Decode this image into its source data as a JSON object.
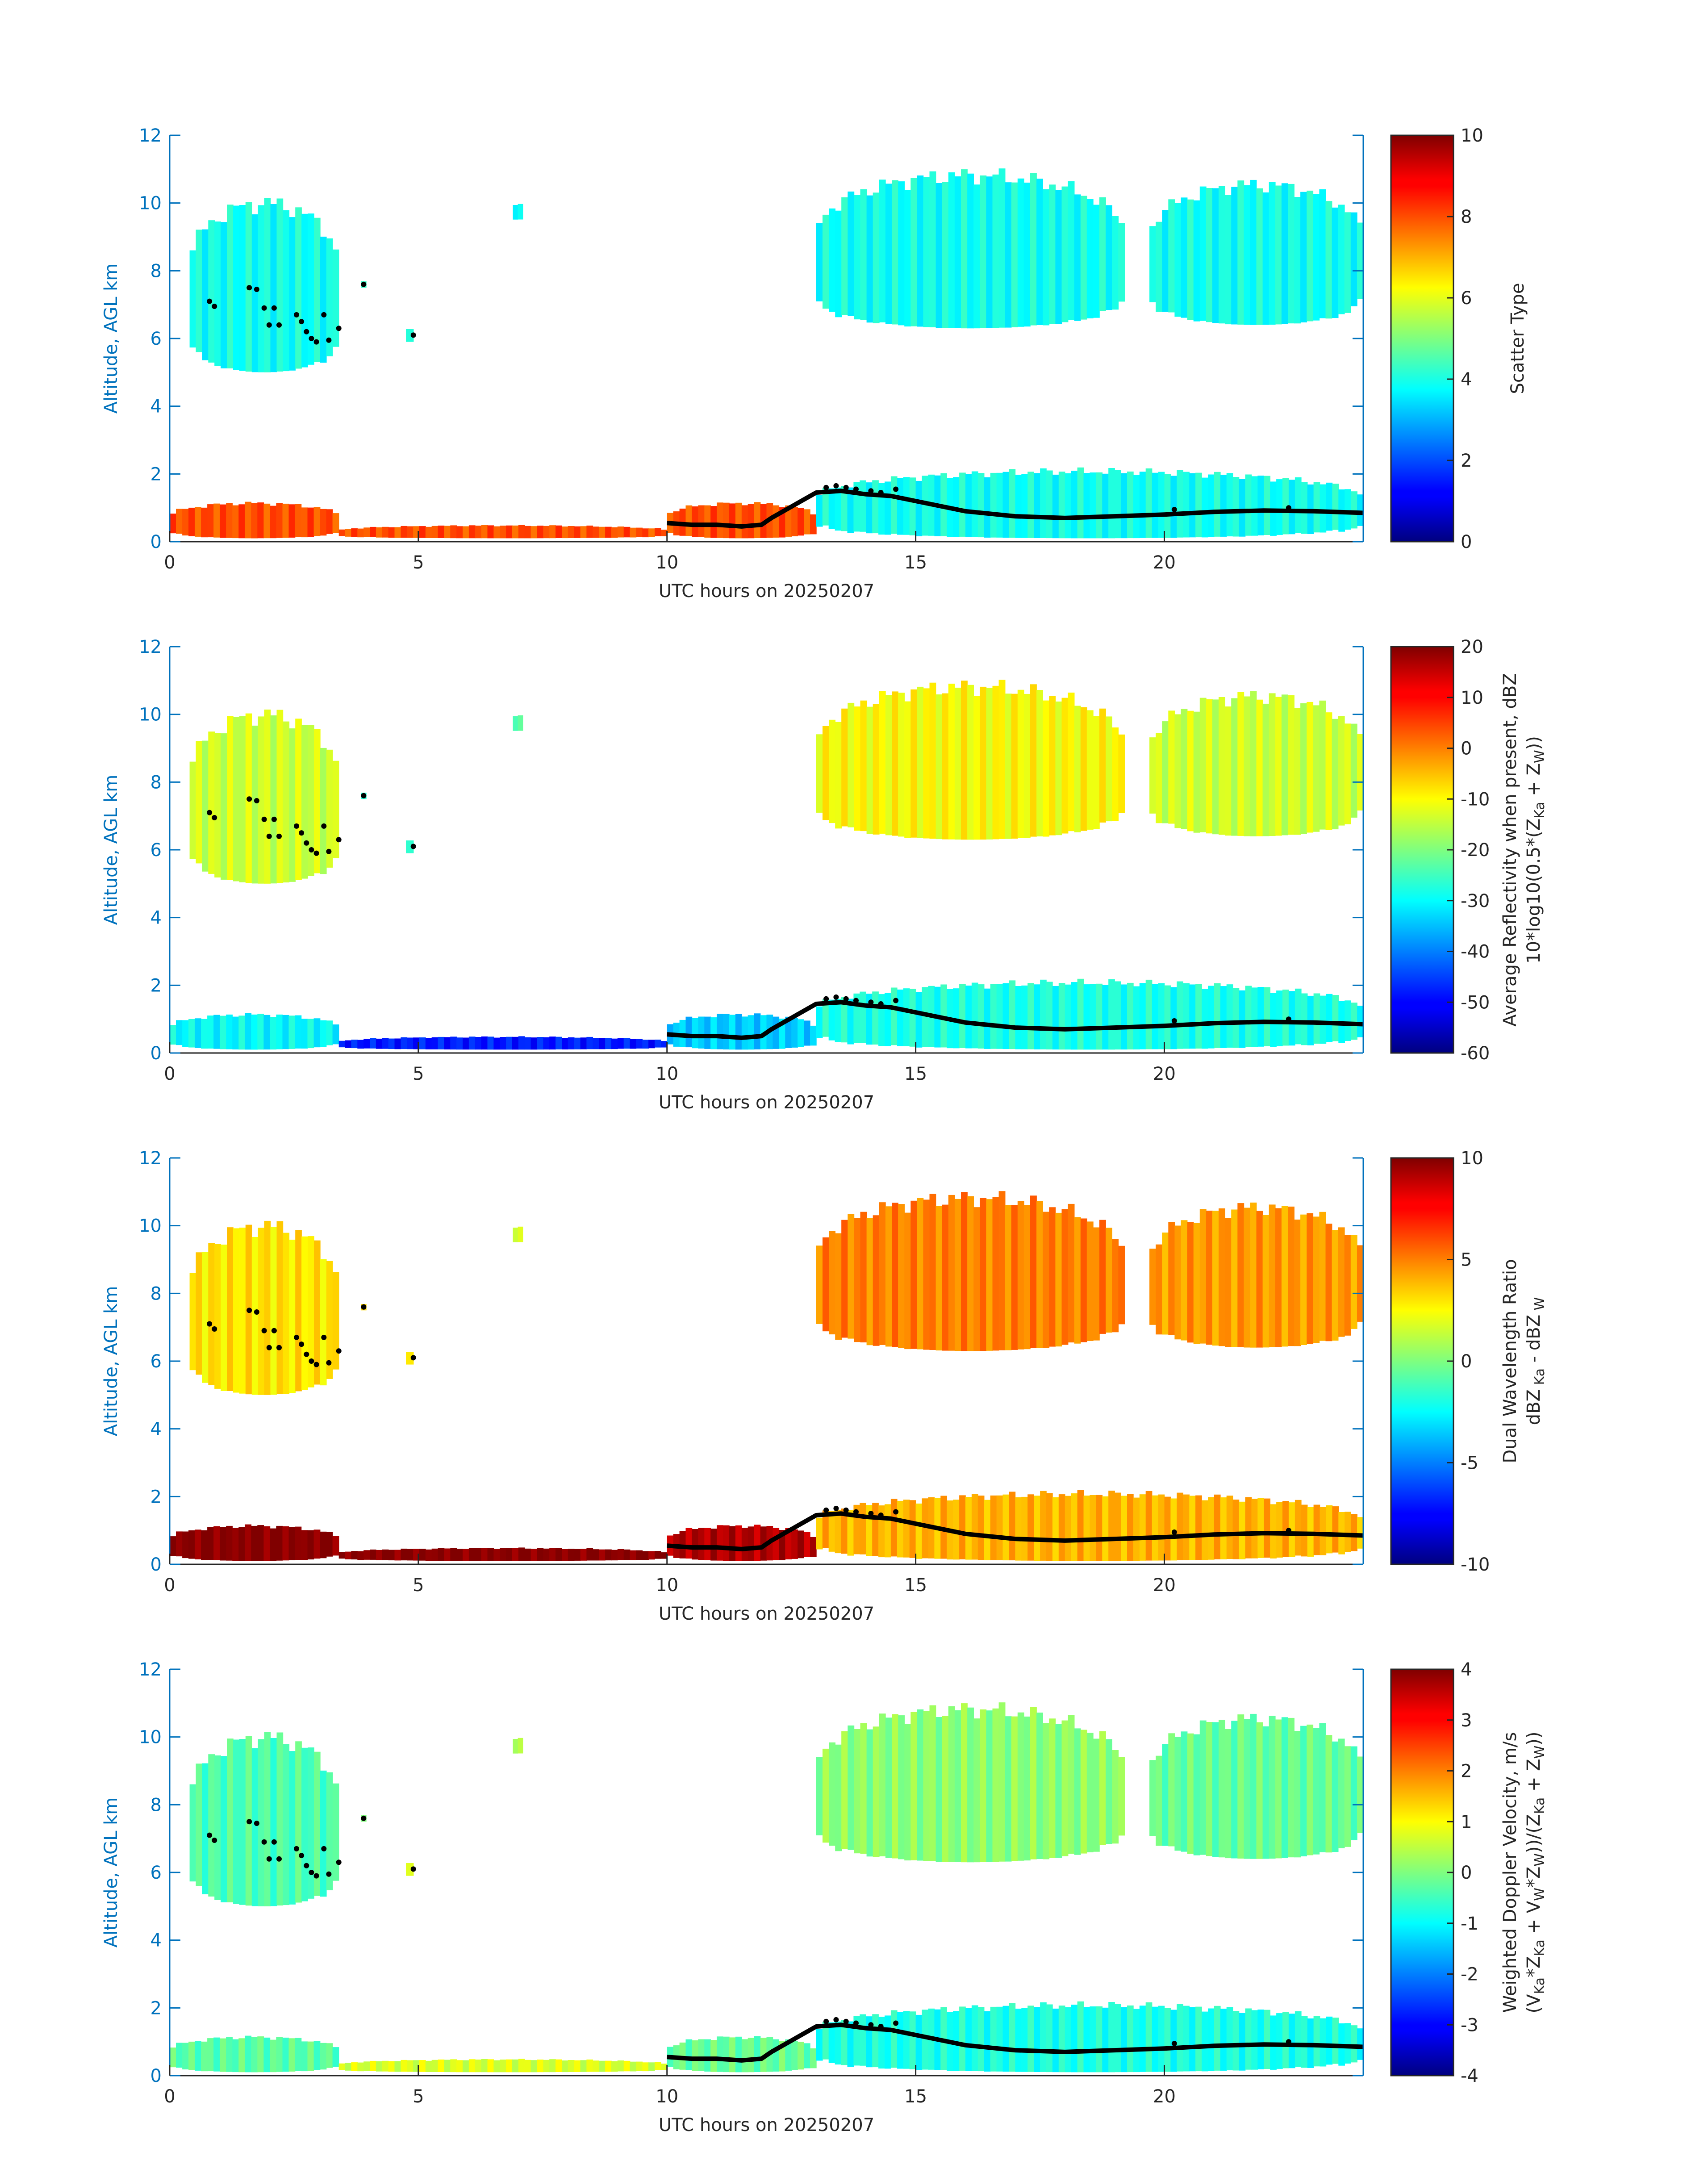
{
  "figure": {
    "x_axis": {
      "label": "UTC hours on 20250207",
      "ticks": [
        0,
        5,
        10,
        15,
        20
      ],
      "lim": [
        0,
        24
      ]
    },
    "y_axis": {
      "label": "Altitude, AGL km",
      "ticks": [
        0,
        2,
        4,
        6,
        8,
        10,
        12
      ],
      "lim": [
        0,
        12
      ]
    },
    "axis_color": "#0072bd",
    "colormap": "jet",
    "marker_color": "#000000"
  },
  "chart_data": [
    {
      "type": "heatmap",
      "panel": "scatter-type",
      "xlabel": "UTC hours on 20250207",
      "ylabel": "Altitude, AGL km",
      "xlim": [
        0,
        24
      ],
      "ylim": [
        0,
        12
      ],
      "colorbar": {
        "label_lines": [
          "Scatter Type"
        ],
        "clim": [
          0,
          10
        ],
        "ticks": [
          0,
          2,
          4,
          6,
          8,
          10
        ]
      },
      "regions": [
        {
          "label": "upper cloud 0.4-3.4 h",
          "x": [
            0.4,
            3.4
          ],
          "y_bottom": 5.0,
          "y_top": 10.3,
          "value": 3.9
        },
        {
          "label": "cloud near 3.9 h",
          "x": [
            3.85,
            3.95
          ],
          "y_bottom": 7.5,
          "y_top": 7.7,
          "value": 3.9
        },
        {
          "label": "cloud near 4.8 h",
          "x": [
            4.75,
            4.9
          ],
          "y_bottom": 5.9,
          "y_top": 6.3,
          "value": 3.9
        },
        {
          "label": "cloud near 7 h",
          "x": [
            6.9,
            7.1
          ],
          "y_bottom": 9.5,
          "y_top": 10.0,
          "value": 3.9
        },
        {
          "label": "upper cloud 13-19.2 h",
          "x": [
            13.0,
            19.2
          ],
          "y_bottom": 6.3,
          "y_top": 11.1,
          "value": 3.9
        },
        {
          "label": "upper cloud 19.7-24 h",
          "x": [
            19.7,
            24.0
          ],
          "y_bottom": 6.4,
          "y_top": 10.8,
          "value": 3.9
        },
        {
          "label": "low layer 0-3.4 h",
          "x": [
            0.0,
            3.4
          ],
          "y_bottom": 0.1,
          "y_top": 1.2,
          "value": 8.0
        },
        {
          "label": "low layer 3.4-10 h",
          "x": [
            3.4,
            10.0
          ],
          "y_bottom": 0.1,
          "y_top": 0.5,
          "value": 8.0
        },
        {
          "label": "low layer 10-13 h",
          "x": [
            10.0,
            13.0
          ],
          "y_bottom": 0.1,
          "y_top": 1.2,
          "value": 8.0
        },
        {
          "label": "low cloud 13-24 h",
          "x": [
            13.0,
            24.0
          ],
          "y_bottom": 0.1,
          "y_top": 2.2,
          "value": 3.9
        }
      ]
    },
    {
      "type": "heatmap",
      "panel": "reflectivity",
      "xlabel": "UTC hours on 20250207",
      "ylabel": "Altitude, AGL km",
      "xlim": [
        0,
        24
      ],
      "ylim": [
        0,
        12
      ],
      "colorbar": {
        "label_lines": [
          "Average Reflectivity when present, dBZ",
          "10*log10(0.5*(Z_Ka + Z_W))"
        ],
        "clim": [
          -60,
          20
        ],
        "ticks": [
          -60,
          -50,
          -40,
          -30,
          -20,
          -10,
          0,
          10,
          20
        ]
      },
      "regions": [
        {
          "label": "upper cloud 0.4-3.4 h",
          "x": [
            0.4,
            3.4
          ],
          "y_bottom": 5.0,
          "y_top": 10.3,
          "value": -14
        },
        {
          "label": "cloud near 3.9 h",
          "x": [
            3.85,
            3.95
          ],
          "y_bottom": 7.5,
          "y_top": 7.7,
          "value": -30
        },
        {
          "label": "cloud near 4.8 h",
          "x": [
            4.75,
            4.9
          ],
          "y_bottom": 5.9,
          "y_top": 6.3,
          "value": -28
        },
        {
          "label": "cloud near 7 h",
          "x": [
            6.9,
            7.1
          ],
          "y_bottom": 9.5,
          "y_top": 10.0,
          "value": -22
        },
        {
          "label": "upper cloud 13-19.2 h",
          "x": [
            13.0,
            19.2
          ],
          "y_bottom": 6.3,
          "y_top": 11.1,
          "value": -10
        },
        {
          "label": "upper cloud 19.7-24 h",
          "x": [
            19.7,
            24.0
          ],
          "y_bottom": 6.4,
          "y_top": 10.8,
          "value": -14
        },
        {
          "label": "low layer 0-3.4 h",
          "x": [
            0.0,
            3.4
          ],
          "y_bottom": 0.1,
          "y_top": 1.2,
          "value": -30
        },
        {
          "label": "low layer 3.4-10 h",
          "x": [
            3.4,
            10.0
          ],
          "y_bottom": 0.1,
          "y_top": 0.5,
          "value": -48
        },
        {
          "label": "low layer 10-13 h",
          "x": [
            10.0,
            13.0
          ],
          "y_bottom": 0.1,
          "y_top": 1.2,
          "value": -34
        },
        {
          "label": "low cloud 13-24 h",
          "x": [
            13.0,
            24.0
          ],
          "y_bottom": 0.1,
          "y_top": 2.2,
          "value": -28
        }
      ]
    },
    {
      "type": "heatmap",
      "panel": "dual-wavelength-ratio",
      "xlabel": "UTC hours on 20250207",
      "ylabel": "Altitude, AGL km",
      "xlim": [
        0,
        24
      ],
      "ylim": [
        0,
        12
      ],
      "colorbar": {
        "label_lines": [
          "Dual Wavelength Ratio",
          "dBZ_Ka - dBZ_W"
        ],
        "clim": [
          -10,
          10
        ],
        "ticks": [
          -10,
          -5,
          0,
          5,
          10
        ]
      },
      "regions": [
        {
          "label": "upper cloud 0.4-3.4 h",
          "x": [
            0.4,
            3.4
          ],
          "y_bottom": 5.0,
          "y_top": 10.3,
          "value": 3.0
        },
        {
          "label": "cloud near 3.9 h",
          "x": [
            3.85,
            3.95
          ],
          "y_bottom": 7.5,
          "y_top": 7.7,
          "value": 2.5
        },
        {
          "label": "cloud near 4.8 h",
          "x": [
            4.75,
            4.9
          ],
          "y_bottom": 5.9,
          "y_top": 6.3,
          "value": 2.5
        },
        {
          "label": "cloud near 7 h",
          "x": [
            6.9,
            7.1
          ],
          "y_bottom": 9.5,
          "y_top": 10.0,
          "value": 2.0
        },
        {
          "label": "upper cloud 13-19.2 h",
          "x": [
            13.0,
            19.2
          ],
          "y_bottom": 6.3,
          "y_top": 11.1,
          "value": 5.0
        },
        {
          "label": "upper cloud 19.7-24 h",
          "x": [
            19.7,
            24.0
          ],
          "y_bottom": 6.4,
          "y_top": 10.8,
          "value": 4.5
        },
        {
          "label": "low layer 0-3.4 h",
          "x": [
            0.0,
            3.4
          ],
          "y_bottom": 0.1,
          "y_top": 1.2,
          "value": 10.0
        },
        {
          "label": "low layer 3.4-10 h",
          "x": [
            3.4,
            10.0
          ],
          "y_bottom": 0.1,
          "y_top": 0.5,
          "value": 10.0
        },
        {
          "label": "low layer 10-13 h",
          "x": [
            10.0,
            13.0
          ],
          "y_bottom": 0.1,
          "y_top": 1.2,
          "value": 9.0
        },
        {
          "label": "low cloud 13-24 h",
          "x": [
            13.0,
            24.0
          ],
          "y_bottom": 0.1,
          "y_top": 2.2,
          "value": 4.0
        }
      ]
    },
    {
      "type": "heatmap",
      "panel": "doppler-velocity",
      "xlabel": "UTC hours on 20250207",
      "ylabel": "Altitude, AGL km",
      "xlim": [
        0,
        24
      ],
      "ylim": [
        0,
        12
      ],
      "colorbar": {
        "label_lines": [
          "Weighted Doppler Velocity, m/s",
          "(V_Ka*Z_Ka + V_W*Z_W))/(Z_Ka + Z_W))"
        ],
        "clim": [
          -4,
          4
        ],
        "ticks": [
          -4,
          -3,
          -2,
          -1,
          0,
          1,
          2,
          3,
          4
        ]
      },
      "regions": [
        {
          "label": "upper cloud 0.4-3.4 h",
          "x": [
            0.4,
            3.4
          ],
          "y_bottom": 5.0,
          "y_top": 10.3,
          "value": -0.4
        },
        {
          "label": "cloud near 3.9 h",
          "x": [
            3.85,
            3.95
          ],
          "y_bottom": 7.5,
          "y_top": 7.7,
          "value": -0.3
        },
        {
          "label": "cloud near 4.8 h",
          "x": [
            4.75,
            4.9
          ],
          "y_bottom": 5.9,
          "y_top": 6.3,
          "value": 0.6
        },
        {
          "label": "cloud near 7 h",
          "x": [
            6.9,
            7.1
          ],
          "y_bottom": 9.5,
          "y_top": 10.0,
          "value": 0.5
        },
        {
          "label": "upper cloud 13-19.2 h",
          "x": [
            13.0,
            19.2
          ],
          "y_bottom": 6.3,
          "y_top": 11.1,
          "value": 0.1
        },
        {
          "label": "upper cloud 19.7-24 h",
          "x": [
            19.7,
            24.0
          ],
          "y_bottom": 6.4,
          "y_top": 10.8,
          "value": -0.2
        },
        {
          "label": "low layer 0-3.4 h",
          "x": [
            0.0,
            3.4
          ],
          "y_bottom": 0.1,
          "y_top": 1.2,
          "value": -0.3
        },
        {
          "label": "low layer 3.4-10 h",
          "x": [
            3.4,
            10.0
          ],
          "y_bottom": 0.1,
          "y_top": 0.5,
          "value": 0.7
        },
        {
          "label": "low layer 10-13 h",
          "x": [
            10.0,
            13.0
          ],
          "y_bottom": 0.1,
          "y_top": 1.2,
          "value": -0.2
        },
        {
          "label": "low cloud 13-24 h",
          "x": [
            13.0,
            24.0
          ],
          "y_bottom": 0.1,
          "y_top": 2.2,
          "value": -0.8
        }
      ]
    }
  ],
  "overlay_points": {
    "boundary_line": [
      [
        10.0,
        0.55
      ],
      [
        10.5,
        0.5
      ],
      [
        11.0,
        0.5
      ],
      [
        11.5,
        0.45
      ],
      [
        11.9,
        0.5
      ],
      [
        12.1,
        0.7
      ],
      [
        13.0,
        1.45
      ],
      [
        13.5,
        1.5
      ],
      [
        14.0,
        1.4
      ],
      [
        14.5,
        1.35
      ],
      [
        15.0,
        1.2
      ],
      [
        16.0,
        0.9
      ],
      [
        17.0,
        0.75
      ],
      [
        18.0,
        0.7
      ],
      [
        19.0,
        0.75
      ],
      [
        20.0,
        0.8
      ],
      [
        21.0,
        0.88
      ],
      [
        22.0,
        0.92
      ],
      [
        23.0,
        0.9
      ],
      [
        24.0,
        0.85
      ]
    ],
    "scatter": [
      [
        0.8,
        7.1
      ],
      [
        0.9,
        6.95
      ],
      [
        1.6,
        7.5
      ],
      [
        1.75,
        7.45
      ],
      [
        1.9,
        6.9
      ],
      [
        2.0,
        6.4
      ],
      [
        2.1,
        6.9
      ],
      [
        2.2,
        6.4
      ],
      [
        2.55,
        6.7
      ],
      [
        2.65,
        6.5
      ],
      [
        2.75,
        6.2
      ],
      [
        2.85,
        6.0
      ],
      [
        2.95,
        5.9
      ],
      [
        3.1,
        6.7
      ],
      [
        3.2,
        5.95
      ],
      [
        3.4,
        6.3
      ],
      [
        3.9,
        7.6
      ],
      [
        4.9,
        6.1
      ],
      [
        13.2,
        1.6
      ],
      [
        13.4,
        1.65
      ],
      [
        13.6,
        1.6
      ],
      [
        13.8,
        1.55
      ],
      [
        14.1,
        1.5
      ],
      [
        14.3,
        1.45
      ],
      [
        14.6,
        1.55
      ],
      [
        20.2,
        0.95
      ],
      [
        22.5,
        1.0
      ]
    ]
  }
}
